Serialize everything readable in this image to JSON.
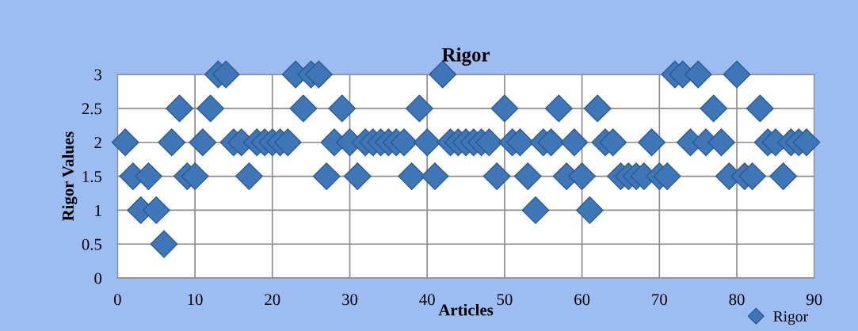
{
  "chart_data": {
    "type": "scatter",
    "title": "Rigor",
    "xlabel": "Articles",
    "ylabel": "Rigor Values",
    "x": [
      1,
      2,
      3,
      4,
      5,
      6,
      7,
      8,
      9,
      10,
      11,
      12,
      13,
      14,
      15,
      16,
      17,
      18,
      19,
      20,
      21,
      22,
      23,
      24,
      25,
      26,
      27,
      28,
      29,
      30,
      31,
      32,
      33,
      34,
      35,
      36,
      37,
      38,
      39,
      40,
      41,
      42,
      43,
      44,
      45,
      46,
      47,
      48,
      49,
      50,
      51,
      52,
      53,
      54,
      55,
      56,
      57,
      58,
      59,
      60,
      61,
      62,
      63,
      64,
      65,
      66,
      67,
      68,
      69,
      70,
      71,
      72,
      73,
      74,
      75,
      76,
      77,
      78,
      79,
      80,
      81,
      82,
      83,
      84,
      85,
      86,
      87,
      88,
      89
    ],
    "series": [
      {
        "name": "Rigor",
        "color": "#3f76b8",
        "values": [
          2,
          1.5,
          1,
          1.5,
          1,
          0.5,
          2,
          2.5,
          1.5,
          1.5,
          2,
          2.5,
          3,
          3,
          2,
          2,
          1.5,
          2,
          2,
          2,
          2,
          2,
          3,
          2.5,
          3,
          3,
          1.5,
          2,
          2.5,
          2,
          1.5,
          2,
          2,
          2,
          2,
          2,
          2,
          1.5,
          2.5,
          2,
          1.5,
          3,
          2,
          2,
          2,
          2,
          2,
          2,
          1.5,
          2.5,
          2,
          2,
          1.5,
          1,
          2,
          2,
          2.5,
          1.5,
          2,
          1.5,
          1,
          2.5,
          2,
          2,
          1.5,
          1.5,
          1.5,
          1.5,
          2,
          1.5,
          1.5,
          3,
          3,
          2,
          3,
          2,
          2.5,
          2,
          1.5,
          3,
          1.5,
          1.5,
          2.5,
          2,
          2,
          1.5,
          2,
          2,
          2
        ]
      }
    ],
    "xlim": [
      0,
      90
    ],
    "xticks": [
      0,
      10,
      20,
      30,
      40,
      50,
      60,
      70,
      80,
      90
    ],
    "ylim": [
      0,
      3
    ],
    "yticks": [
      0,
      0.5,
      1,
      1.5,
      2,
      2.5,
      3
    ],
    "grid": true,
    "legend": "bottom right",
    "marker": "diamond"
  }
}
